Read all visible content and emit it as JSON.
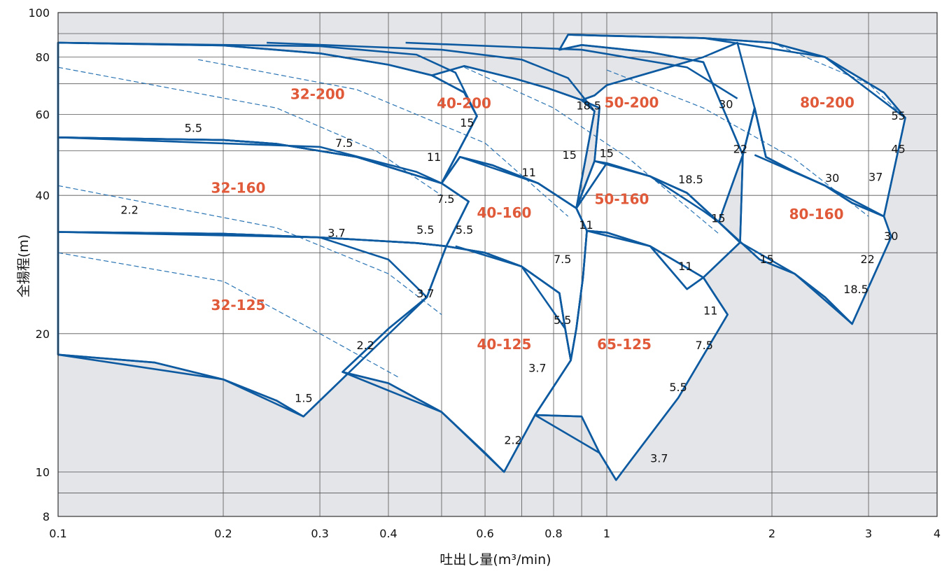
{
  "chart_data": {
    "type": "line",
    "title": "",
    "xlabel": "吐出し量(m³/min)",
    "ylabel": "全揚程(m)",
    "x_scale": "log",
    "y_scale": "log",
    "xlim": [
      0.1,
      4
    ],
    "ylim": [
      8,
      100
    ],
    "x_ticks": [
      0.1,
      0.2,
      0.3,
      0.4,
      0.6,
      0.8,
      1,
      2,
      3,
      4
    ],
    "x_tick_labels": [
      "0.1",
      "0.2",
      "0.3",
      "0.4",
      "0.6",
      "0.8",
      "1",
      "2",
      "3",
      "4"
    ],
    "y_ticks": [
      8,
      10,
      20,
      40,
      60,
      80,
      100
    ],
    "y_tick_labels": [
      "8",
      "10",
      "20",
      "40",
      "60",
      "80",
      "100"
    ],
    "grid": true,
    "background_color": "#e4e5e9",
    "region_color": "#ffffff",
    "curve_color": "#0d5aa0",
    "model_label_color": "#e05a3a",
    "models": [
      {
        "name": "32-125",
        "label_at": [
          0.19,
          22.5
        ],
        "boundary": [
          [
            0.1,
            18
          ],
          [
            0.15,
            17.3
          ],
          [
            0.2,
            15.9
          ],
          [
            0.25,
            14.3
          ],
          [
            0.28,
            13.2
          ],
          [
            0.47,
            24
          ],
          [
            0.51,
            31
          ],
          [
            0.45,
            31.5
          ],
          [
            0.3,
            32.4
          ],
          [
            0.2,
            33
          ],
          [
            0.1,
            33.3
          ]
        ]
      },
      {
        "name": "32-160",
        "label_at": [
          0.19,
          40.5
        ],
        "boundary": [
          [
            0.1,
            33.3
          ],
          [
            0.2,
            33
          ],
          [
            0.3,
            32.4
          ],
          [
            0.45,
            31.5
          ],
          [
            0.51,
            31
          ],
          [
            0.56,
            38.8
          ],
          [
            0.5,
            42.5
          ],
          [
            0.35,
            48.5
          ],
          [
            0.25,
            51.8
          ],
          [
            0.2,
            52.8
          ],
          [
            0.1,
            53.5
          ]
        ]
      },
      {
        "name": "32-200",
        "label_at": [
          0.265,
          64.8
        ],
        "boundary": [
          [
            0.1,
            53.5
          ],
          [
            0.2,
            52.8
          ],
          [
            0.25,
            51.8
          ],
          [
            0.35,
            48.5
          ],
          [
            0.5,
            42.5
          ],
          [
            0.58,
            59.5
          ],
          [
            0.55,
            67
          ],
          [
            0.48,
            73
          ],
          [
            0.4,
            77
          ],
          [
            0.3,
            81.5
          ],
          [
            0.2,
            84.8
          ],
          [
            0.1,
            86
          ]
        ]
      },
      {
        "name": "40-125",
        "label_at": [
          0.58,
          18.5
        ],
        "boundary": [
          [
            0.4,
            20.5
          ],
          [
            0.47,
            24
          ],
          [
            0.51,
            31
          ],
          [
            0.6,
            30
          ],
          [
            0.7,
            28
          ],
          [
            0.82,
            24.5
          ],
          [
            0.84,
            20.5
          ],
          [
            0.86,
            17.5
          ],
          [
            0.74,
            13.3
          ],
          [
            0.65,
            10
          ],
          [
            0.6,
            11
          ],
          [
            0.5,
            13.5
          ],
          [
            0.4,
            15.6
          ],
          [
            0.33,
            16.5
          ]
        ]
      },
      {
        "name": "40-160",
        "label_at": [
          0.58,
          35.8
        ],
        "boundary": [
          [
            0.51,
            31
          ],
          [
            0.6,
            30
          ],
          [
            0.7,
            28
          ],
          [
            0.82,
            24.5
          ],
          [
            0.84,
            20.5
          ],
          [
            0.86,
            17.5
          ],
          [
            0.88,
            20.5
          ],
          [
            0.905,
            26.5
          ],
          [
            0.92,
            33.5
          ],
          [
            0.88,
            37.5
          ],
          [
            0.75,
            42.5
          ],
          [
            0.62,
            46.5
          ],
          [
            0.54,
            48.5
          ],
          [
            0.5,
            42.5
          ],
          [
            0.56,
            38.8
          ]
        ]
      },
      {
        "name": "40-200",
        "label_at": [
          0.49,
          62
        ],
        "boundary": [
          [
            0.5,
            42.5
          ],
          [
            0.54,
            48.5
          ],
          [
            0.62,
            46.5
          ],
          [
            0.75,
            42.5
          ],
          [
            0.88,
            37.5
          ],
          [
            0.95,
            61
          ],
          [
            0.9,
            64.5
          ],
          [
            0.78,
            68.5
          ],
          [
            0.68,
            71.8
          ],
          [
            0.55,
            76.5
          ],
          [
            0.48,
            73
          ],
          [
            0.55,
            67
          ],
          [
            0.58,
            59.5
          ]
        ]
      },
      {
        "name": "65-125",
        "label_at": [
          0.96,
          18.5
        ],
        "boundary": [
          [
            0.86,
            17.5
          ],
          [
            0.88,
            20.5
          ],
          [
            0.905,
            26.5
          ],
          [
            0.92,
            33.5
          ],
          [
            1.0,
            33.2
          ],
          [
            1.2,
            31
          ],
          [
            1.5,
            26.5
          ],
          [
            1.66,
            22
          ],
          [
            1.35,
            14.5
          ],
          [
            1.1,
            10.5
          ],
          [
            1.04,
            9.6
          ],
          [
            0.97,
            11
          ],
          [
            0.9,
            13.2
          ],
          [
            0.74,
            13.3
          ]
        ]
      },
      {
        "name": "50-160",
        "label_at": [
          0.95,
          38.3
        ],
        "boundary": [
          [
            0.92,
            33.5
          ],
          [
            0.88,
            37.5
          ],
          [
            0.95,
            47.5
          ],
          [
            1.0,
            47
          ],
          [
            1.2,
            44
          ],
          [
            1.4,
            40.5
          ],
          [
            1.6,
            35
          ],
          [
            1.75,
            31.6
          ],
          [
            1.5,
            26.5
          ],
          [
            1.4,
            25
          ],
          [
            1.2,
            31
          ],
          [
            1.0,
            33.2
          ]
        ]
      },
      {
        "name": "50-200",
        "label_at": [
          0.99,
          62.2
        ],
        "boundary": [
          [
            0.88,
            37.5
          ],
          [
            0.95,
            47.5
          ],
          [
            0.97,
            62
          ],
          [
            0.9,
            64.5
          ],
          [
            0.95,
            66
          ],
          [
            1.0,
            69.5
          ],
          [
            1.2,
            74
          ],
          [
            1.5,
            80
          ],
          [
            1.73,
            86
          ],
          [
            1.86,
            62
          ],
          [
            1.77,
            49
          ],
          [
            1.6,
            35
          ],
          [
            1.4,
            40.5
          ],
          [
            1.2,
            44
          ],
          [
            1.0,
            47
          ]
        ]
      },
      {
        "name": "80-160",
        "label_at": [
          2.15,
          35.5
        ],
        "boundary": [
          [
            1.75,
            31.6
          ],
          [
            1.6,
            35
          ],
          [
            1.9,
            29
          ],
          [
            2.2,
            27
          ],
          [
            2.5,
            24
          ],
          [
            2.8,
            21
          ],
          [
            3.3,
            32.5
          ],
          [
            3.2,
            36
          ],
          [
            2.8,
            38.5
          ],
          [
            2.5,
            42
          ],
          [
            2.2,
            45
          ],
          [
            1.95,
            48.5
          ],
          [
            1.86,
            62
          ],
          [
            1.77,
            49
          ]
        ]
      },
      {
        "name": "80-200",
        "label_at": [
          2.25,
          62.2
        ],
        "boundary": [
          [
            1.77,
            49
          ],
          [
            1.86,
            62
          ],
          [
            1.95,
            48.5
          ],
          [
            2.2,
            45
          ],
          [
            2.5,
            42
          ],
          [
            2.8,
            38.5
          ],
          [
            3.2,
            36
          ],
          [
            3.5,
            59
          ],
          [
            3.2,
            67
          ],
          [
            2.5,
            80
          ],
          [
            2.0,
            86
          ],
          [
            1.5,
            88
          ],
          [
            1.0,
            89
          ],
          [
            0.85,
            89.5
          ],
          [
            0.82,
            83
          ],
          [
            0.9,
            85
          ],
          [
            1.2,
            82
          ],
          [
            1.5,
            78
          ]
        ]
      }
    ],
    "performance_curves": [
      [
        [
          0.1,
          86
        ],
        [
          0.3,
          84.5
        ],
        [
          0.45,
          81
        ],
        [
          0.53,
          74
        ],
        [
          0.58,
          59.5
        ]
      ],
      [
        [
          0.1,
          53.5
        ],
        [
          0.3,
          51
        ],
        [
          0.45,
          45
        ],
        [
          0.5,
          42.5
        ]
      ],
      [
        [
          0.1,
          33.3
        ],
        [
          0.3,
          32.4
        ],
        [
          0.4,
          29
        ],
        [
          0.47,
          24
        ]
      ],
      [
        [
          0.1,
          18
        ],
        [
          0.2,
          15.9
        ],
        [
          0.28,
          13.2
        ]
      ],
      [
        [
          0.24,
          86
        ],
        [
          0.5,
          83
        ],
        [
          0.7,
          79
        ],
        [
          0.85,
          72
        ],
        [
          0.95,
          61
        ]
      ],
      [
        [
          0.54,
          48.5
        ],
        [
          0.75,
          42.5
        ],
        [
          0.88,
          37.5
        ],
        [
          0.92,
          33.5
        ]
      ],
      [
        [
          0.53,
          31
        ],
        [
          0.7,
          28
        ],
        [
          0.84,
          20.5
        ]
      ],
      [
        [
          0.33,
          16.5
        ],
        [
          0.5,
          13.5
        ],
        [
          0.65,
          10
        ]
      ],
      [
        [
          0.43,
          86
        ],
        [
          0.9,
          83
        ],
        [
          1.4,
          76
        ],
        [
          1.73,
          65
        ]
      ],
      [
        [
          0.95,
          47.5
        ],
        [
          1.2,
          44
        ],
        [
          1.5,
          37
        ],
        [
          1.6,
          35
        ]
      ],
      [
        [
          0.92,
          33.5
        ],
        [
          1.2,
          31
        ],
        [
          1.5,
          26.5
        ],
        [
          1.66,
          22
        ]
      ],
      [
        [
          0.74,
          13.3
        ],
        [
          0.97,
          11
        ],
        [
          1.04,
          9.6
        ]
      ],
      [
        [
          0.85,
          89.5
        ],
        [
          1.5,
          88
        ],
        [
          2.5,
          80
        ],
        [
          3.5,
          59
        ]
      ],
      [
        [
          1.86,
          49
        ],
        [
          2.5,
          42
        ],
        [
          3.2,
          36
        ]
      ],
      [
        [
          1.75,
          31.6
        ],
        [
          2.2,
          27
        ],
        [
          2.8,
          21
        ]
      ]
    ],
    "power_lines": [
      [
        [
          0.1,
          76
        ],
        [
          0.25,
          62
        ],
        [
          0.38,
          50
        ],
        [
          0.5,
          40
        ]
      ],
      [
        [
          0.1,
          42
        ],
        [
          0.25,
          34
        ],
        [
          0.4,
          27
        ],
        [
          0.5,
          22
        ]
      ],
      [
        [
          0.1,
          30
        ],
        [
          0.2,
          26
        ],
        [
          0.3,
          20
        ],
        [
          0.42,
          16
        ]
      ],
      [
        [
          0.18,
          79
        ],
        [
          0.35,
          68
        ],
        [
          0.6,
          52
        ],
        [
          0.85,
          36
        ]
      ],
      [
        [
          0.55,
          76
        ],
        [
          0.8,
          62
        ],
        [
          1.1,
          48
        ],
        [
          1.6,
          33
        ]
      ],
      [
        [
          1.0,
          75
        ],
        [
          1.5,
          62
        ],
        [
          2.2,
          48
        ],
        [
          3.0,
          36
        ]
      ],
      [
        [
          2.0,
          86
        ],
        [
          3.0,
          70
        ],
        [
          3.5,
          59
        ]
      ]
    ],
    "power_labels": [
      {
        "text": "1.5",
        "at": [
          0.27,
          14.2
        ]
      },
      {
        "text": "2.2",
        "at": [
          0.35,
          18.5
        ]
      },
      {
        "text": "2.2",
        "at": [
          0.13,
          36.5
        ]
      },
      {
        "text": "3.7",
        "at": [
          0.45,
          24
        ]
      },
      {
        "text": "3.7",
        "at": [
          0.31,
          32.5
        ]
      },
      {
        "text": "5.5",
        "at": [
          0.17,
          55
        ]
      },
      {
        "text": "7.5",
        "at": [
          0.32,
          51
        ]
      },
      {
        "text": "5.5",
        "at": [
          0.45,
          33
        ]
      },
      {
        "text": "5.5",
        "at": [
          0.53,
          33
        ]
      },
      {
        "text": "7.5",
        "at": [
          0.49,
          38.5
        ]
      },
      {
        "text": "11",
        "at": [
          0.47,
          47.5
        ]
      },
      {
        "text": "15",
        "at": [
          0.54,
          56.5
        ]
      },
      {
        "text": "2.2",
        "at": [
          0.65,
          11.5
        ]
      },
      {
        "text": "3.7",
        "at": [
          0.72,
          16.5
        ]
      },
      {
        "text": "5.5",
        "at": [
          0.8,
          21
        ]
      },
      {
        "text": "7.5",
        "at": [
          0.8,
          28.5
        ]
      },
      {
        "text": "11",
        "at": [
          0.89,
          33.8
        ]
      },
      {
        "text": "11",
        "at": [
          0.7,
          44
        ]
      },
      {
        "text": "15",
        "at": [
          0.83,
          48
        ]
      },
      {
        "text": "18.5",
        "at": [
          0.88,
          61.5
        ]
      },
      {
        "text": "3.7",
        "at": [
          1.2,
          10.5
        ]
      },
      {
        "text": "5.5",
        "at": [
          1.3,
          15
        ]
      },
      {
        "text": "7.5",
        "at": [
          1.45,
          18.5
        ]
      },
      {
        "text": "11",
        "at": [
          1.5,
          22
        ]
      },
      {
        "text": "11",
        "at": [
          1.35,
          27.5
        ]
      },
      {
        "text": "15",
        "at": [
          1.55,
          35
        ]
      },
      {
        "text": "15",
        "at": [
          0.97,
          48.5
        ]
      },
      {
        "text": "18.5",
        "at": [
          1.35,
          42.5
        ]
      },
      {
        "text": "22",
        "at": [
          1.7,
          49.5
        ]
      },
      {
        "text": "30",
        "at": [
          1.6,
          62
        ]
      },
      {
        "text": "15",
        "at": [
          1.9,
          28.5
        ]
      },
      {
        "text": "18.5",
        "at": [
          2.7,
          24.5
        ]
      },
      {
        "text": "22",
        "at": [
          2.9,
          28.5
        ]
      },
      {
        "text": "30",
        "at": [
          3.2,
          32
        ]
      },
      {
        "text": "30",
        "at": [
          2.5,
          42.8
        ]
      },
      {
        "text": "37",
        "at": [
          3.0,
          43
        ]
      },
      {
        "text": "45",
        "at": [
          3.3,
          49.5
        ]
      },
      {
        "text": "55",
        "at": [
          3.3,
          58.5
        ]
      }
    ]
  }
}
